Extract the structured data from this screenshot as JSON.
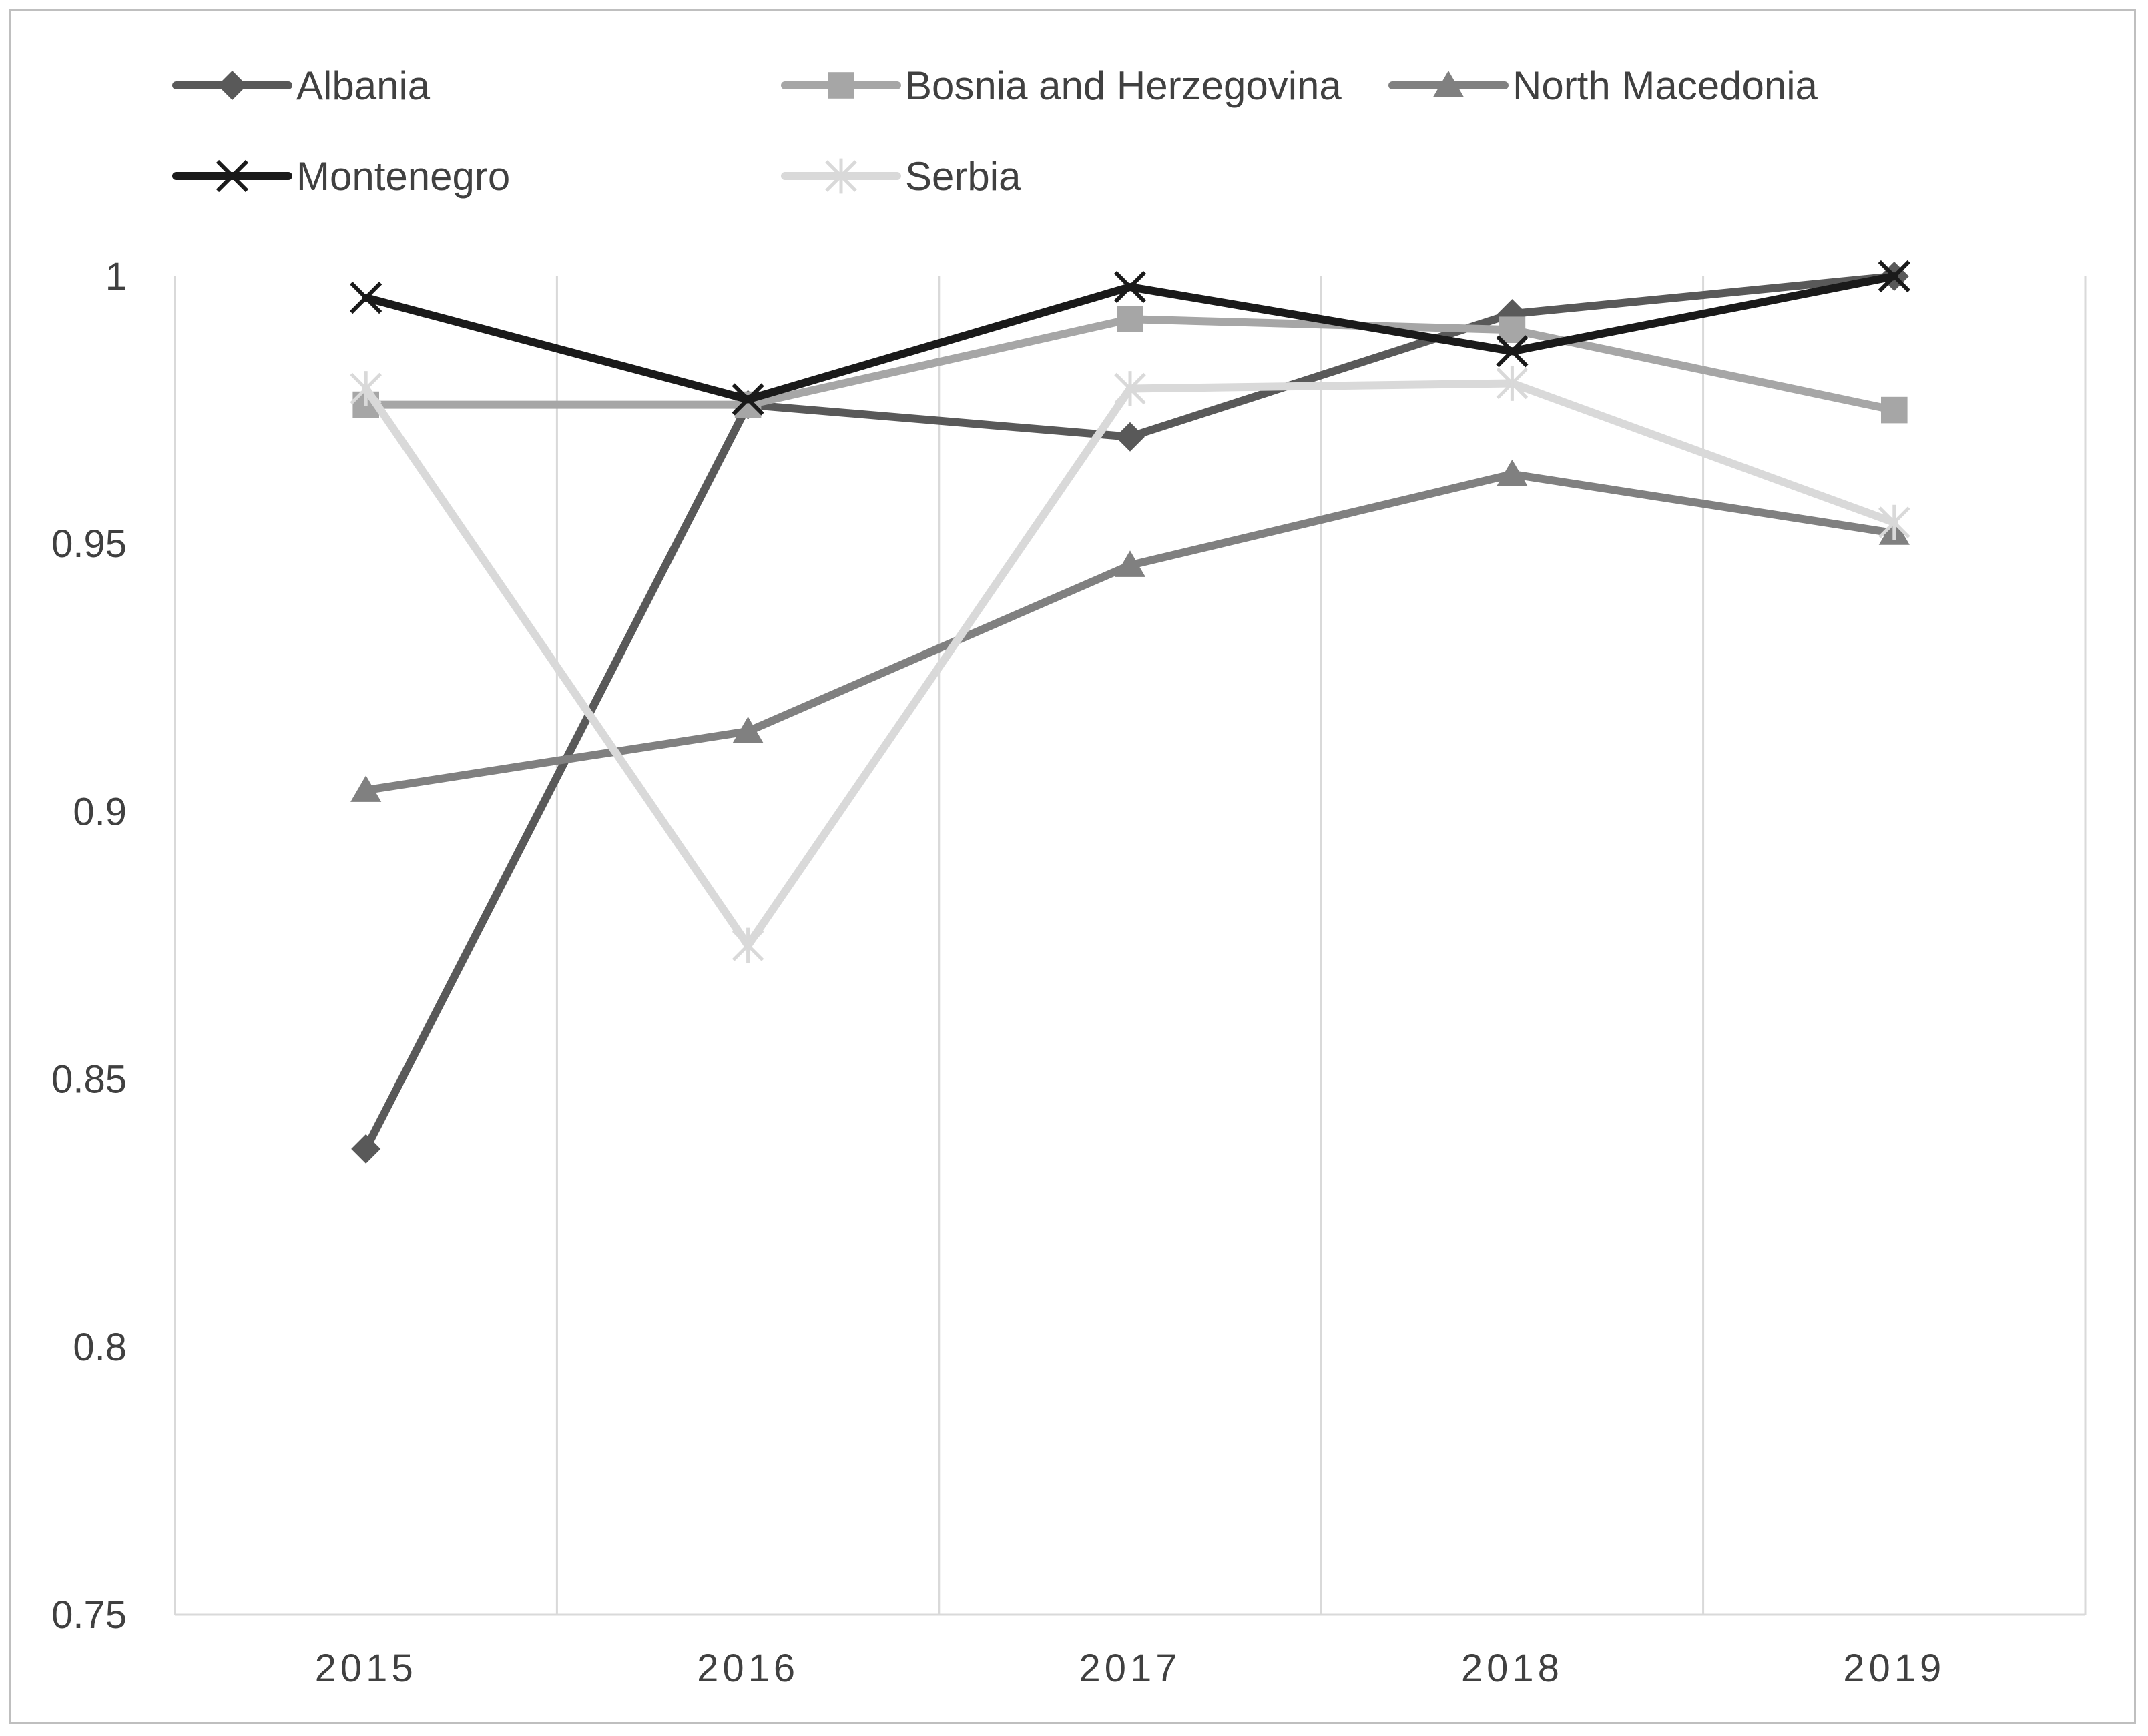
{
  "chart_data": {
    "type": "line",
    "title": "",
    "xlabel": "",
    "ylabel": "",
    "categories": [
      "2015",
      "2016",
      "2017",
      "2018",
      "2019"
    ],
    "ylim": [
      0.75,
      1
    ],
    "yticks": [
      "0.75",
      "0.8",
      "0.85",
      "0.9",
      "0.95",
      "1"
    ],
    "grid": "vertical",
    "legend_position": "top",
    "series": [
      {
        "name": "Albania",
        "values": [
          0.837,
          0.976,
          0.97,
          0.993,
          1.0
        ],
        "color": "#595959",
        "marker": "diamond"
      },
      {
        "name": "Bosnia and Herzegovina",
        "values": [
          0.976,
          0.976,
          0.992,
          0.99,
          0.975
        ],
        "color": "#a6a6a6",
        "marker": "square"
      },
      {
        "name": "North Macedonia",
        "values": [
          0.904,
          0.915,
          0.946,
          0.963,
          0.952
        ],
        "color": "#808080",
        "marker": "triangle"
      },
      {
        "name": "Montenegro",
        "values": [
          0.996,
          0.977,
          0.998,
          0.986,
          1.0
        ],
        "color": "#1a1a1a",
        "marker": "x"
      },
      {
        "name": "Serbia",
        "values": [
          0.979,
          0.875,
          0.979,
          0.98,
          0.954
        ],
        "color": "#d9d9d9",
        "marker": "star"
      }
    ]
  }
}
